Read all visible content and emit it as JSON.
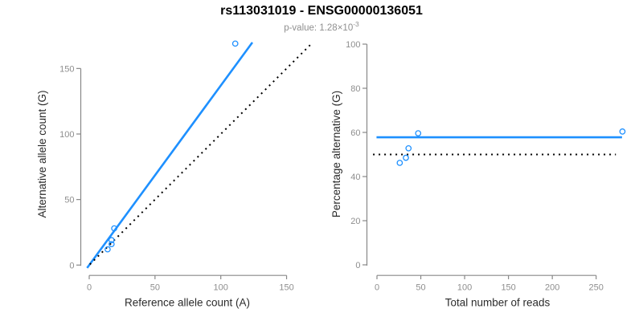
{
  "figure": {
    "title": "rs113031019 - ENSG00000136051",
    "subtitle": {
      "prefix": "p-value: ",
      "mantissa": "1.28",
      "times": "×",
      "base": "10",
      "exponent": "-3"
    }
  },
  "colors": {
    "series_blue": "#1E90FF",
    "identity_black": "#000000",
    "axis_line": "#888888",
    "tick_label": "#8E8E8E",
    "axis_title": "#2B2B2B",
    "title": "#000000",
    "subtitle": "#8F8F8F",
    "background": "#FFFFFF"
  },
  "chart_data": [
    {
      "type": "scatter",
      "panel": "left",
      "title": "",
      "xlabel": "Reference allele count (A)",
      "ylabel": "Alternative allele count (G)",
      "xlim": [
        0,
        157
      ],
      "ylim": [
        0,
        172
      ],
      "xticks": [
        0,
        50,
        100,
        150
      ],
      "yticks": [
        0,
        50,
        100,
        150
      ],
      "grid": false,
      "legend": null,
      "points": [
        [
          14,
          12
        ],
        [
          17,
          16
        ],
        [
          17,
          19
        ],
        [
          19,
          28
        ],
        [
          111,
          169
        ]
      ],
      "lines": [
        {
          "name": "fitted-regression",
          "slope": 1.37,
          "intercept": 0,
          "style": "solid",
          "color_key": "series_blue"
        },
        {
          "name": "identity-diagonal",
          "slope": 1,
          "intercept": 0,
          "style": "dotted",
          "color_key": "identity_black"
        }
      ]
    },
    {
      "type": "scatter",
      "panel": "right",
      "title": "",
      "xlabel": "Total number of reads",
      "ylabel": "Percentage alternative (G)",
      "xlim": [
        0,
        288
      ],
      "ylim": [
        0,
        100
      ],
      "xticks": [
        0,
        50,
        100,
        150,
        200,
        250
      ],
      "yticks": [
        0,
        20,
        40,
        60,
        80,
        100
      ],
      "grid": false,
      "legend": null,
      "points": [
        [
          26,
          46.2
        ],
        [
          33,
          48.5
        ],
        [
          36,
          52.8
        ],
        [
          47,
          59.6
        ],
        [
          280,
          60.4
        ]
      ],
      "lines": [
        {
          "name": "fitted-percentage",
          "hline": 57.8,
          "style": "solid",
          "color_key": "series_blue"
        },
        {
          "name": "null-50-percent",
          "hline": 50,
          "style": "dotted",
          "color_key": "identity_black"
        }
      ]
    }
  ]
}
